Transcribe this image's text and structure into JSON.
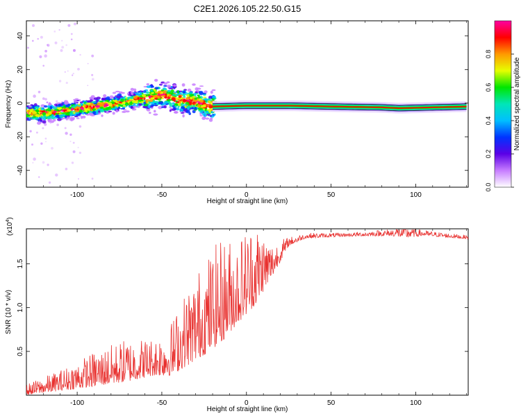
{
  "title": "C2E1.2026.105.22.50.G15",
  "chart_data": [
    {
      "type": "heatmap",
      "xlabel": "Height of straight line (km)",
      "ylabel": "Frequency (Hz)",
      "xlim": [
        -130,
        131
      ],
      "ylim": [
        -50,
        49
      ],
      "xticks": [
        -100,
        -50,
        0,
        50,
        100
      ],
      "yticks": [
        -40,
        -20,
        0,
        20,
        40
      ],
      "colorbar": {
        "label": "Normalized spectral amplitude",
        "range": [
          0,
          1
        ],
        "ticks": [
          "0.0",
          "0.2",
          "0.4",
          "0.6",
          "0.8"
        ],
        "tick_values": [
          0,
          0.2,
          0.4,
          0.6,
          0.8
        ],
        "colors": [
          "#ffffff",
          "#c77dff",
          "#5b00e6",
          "#0033ff",
          "#00bfff",
          "#00e6b8",
          "#00e600",
          "#e6ff00",
          "#ff9900",
          "#ff0000",
          "#ff00a0"
        ]
      },
      "signal_track": [
        {
          "x": -130,
          "f": -6
        },
        {
          "x": -115,
          "f": -5.5
        },
        {
          "x": -100,
          "f": -3.5
        },
        {
          "x": -85,
          "f": -1.5
        },
        {
          "x": -70,
          "f": 1
        },
        {
          "x": -60,
          "f": 3
        },
        {
          "x": -50,
          "f": 5
        },
        {
          "x": -40,
          "f": 2
        },
        {
          "x": -30,
          "f": 1
        },
        {
          "x": -20,
          "f": -2
        },
        {
          "x": 0,
          "f": -1.5
        },
        {
          "x": 25,
          "f": -1.5
        },
        {
          "x": 50,
          "f": -2
        },
        {
          "x": 80,
          "f": -2.5
        },
        {
          "x": 90,
          "f": -3
        },
        {
          "x": 131,
          "f": -2
        }
      ]
    },
    {
      "type": "line",
      "xlabel": "Height of straight line (km)",
      "ylabel": "SNR (10 * v/v)",
      "scale_label": "(x10",
      "scale_exponent": "4",
      "scale_close": ")",
      "xlim": [
        -130,
        131
      ],
      "ylim": [
        0,
        1.9
      ],
      "xticks": [
        -100,
        -50,
        0,
        50,
        100
      ],
      "yticks": [
        0.5,
        1.0,
        1.5
      ],
      "ytick_labels": [
        "0.5",
        "1.0",
        "1.5"
      ],
      "color": "#e8312f",
      "series": [
        {
          "name": "SNR",
          "envelope": [
            {
              "x": -130,
              "base": 0.02,
              "spread": 0.06
            },
            {
              "x": -110,
              "base": 0.08,
              "spread": 0.12
            },
            {
              "x": -90,
              "base": 0.15,
              "spread": 0.2
            },
            {
              "x": -70,
              "base": 0.22,
              "spread": 0.25
            },
            {
              "x": -55,
              "base": 0.28,
              "spread": 0.22
            },
            {
              "x": -45,
              "base": 0.3,
              "spread": 0.3
            },
            {
              "x": -35,
              "base": 0.45,
              "spread": 0.45
            },
            {
              "x": -25,
              "base": 0.6,
              "spread": 0.55
            },
            {
              "x": -15,
              "base": 0.75,
              "spread": 0.6
            },
            {
              "x": -5,
              "base": 0.95,
              "spread": 0.5
            },
            {
              "x": 5,
              "base": 1.15,
              "spread": 0.5
            },
            {
              "x": 15,
              "base": 1.4,
              "spread": 0.2
            },
            {
              "x": 25,
              "base": 1.72,
              "spread": 0.05
            },
            {
              "x": 35,
              "base": 1.8,
              "spread": 0.03
            },
            {
              "x": 60,
              "base": 1.82,
              "spread": 0.02
            },
            {
              "x": 85,
              "base": 1.83,
              "spread": 0.04
            },
            {
              "x": 95,
              "base": 1.82,
              "spread": 0.09
            },
            {
              "x": 105,
              "base": 1.83,
              "spread": 0.03
            },
            {
              "x": 131,
              "base": 1.79,
              "spread": 0.02
            }
          ]
        }
      ]
    }
  ]
}
